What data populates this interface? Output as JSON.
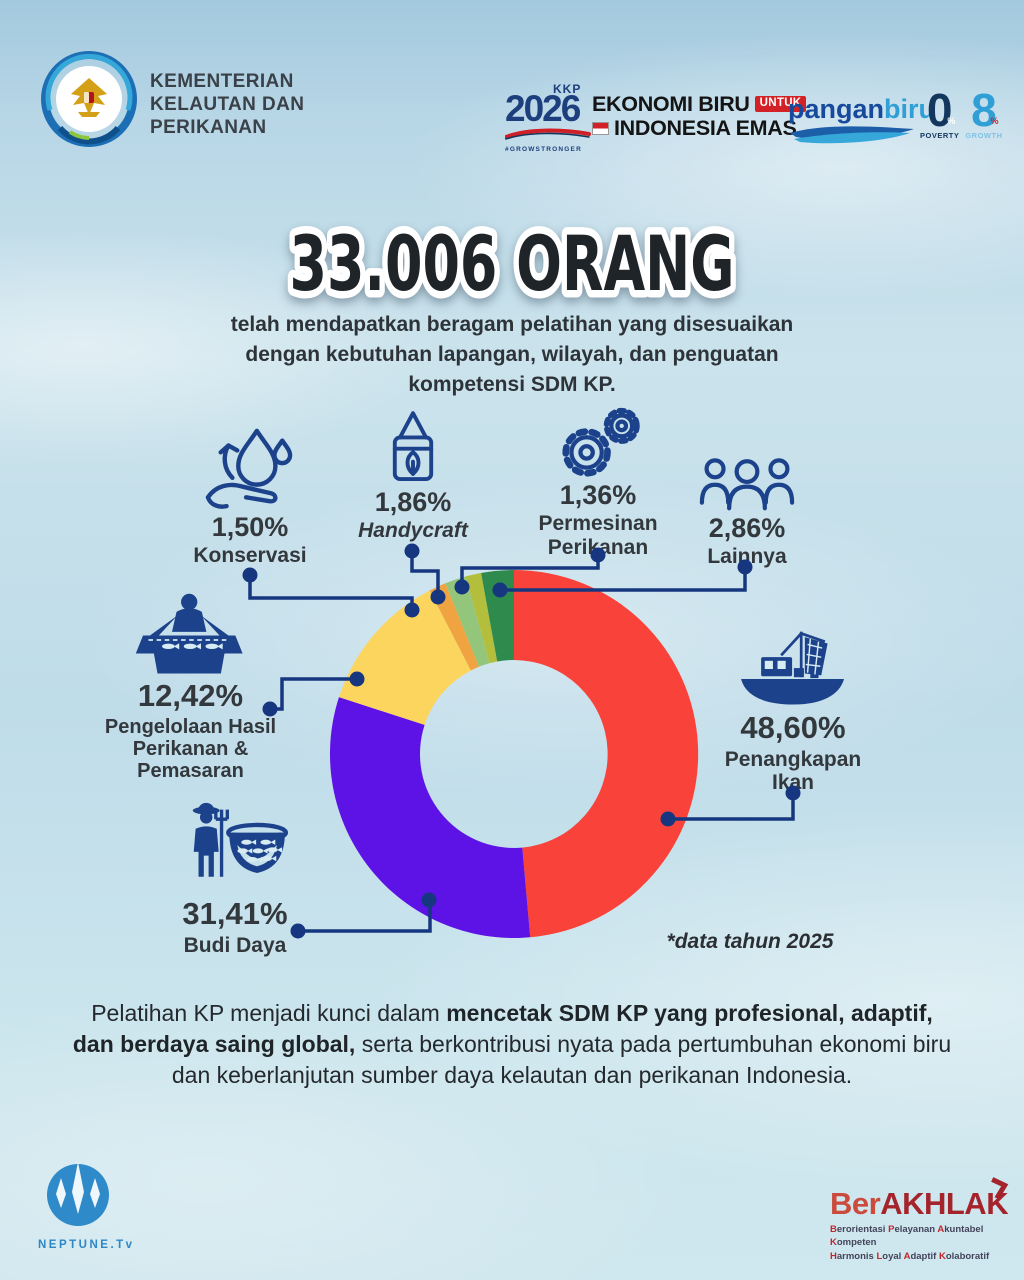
{
  "header": {
    "ministry": {
      "lines": [
        "KEMENTERIAN",
        "KELAUTAN DAN",
        "PERIKANAN"
      ]
    },
    "kkp2026": {
      "kkp": "KKP",
      "year": "2026",
      "tagline": "#GROWSTRONGER"
    },
    "ekonomi_biru": {
      "line1": "EKONOMI BIRU",
      "badge": "UNTUK",
      "line2": "INDONESIA EMAS"
    },
    "pangan_biru": {
      "word1": "pangan",
      "word2": "biru"
    },
    "poverty_growth": {
      "zero": "0",
      "eight": "8",
      "percent": "%",
      "poverty": "POVERTY",
      "growth": "GROWTH"
    }
  },
  "hero": {
    "title": "33.006 ORANG",
    "subtitle": "telah mendapatkan beragam pelatihan yang disesuaikan dengan kebutuhan lapangan, wilayah, dan penguatan kompetensi SDM KP."
  },
  "chart_data": {
    "type": "pie",
    "style": "donut",
    "unit": "percent",
    "start_at": "top",
    "direction": "clockwise",
    "footnote": "*data tahun 2025",
    "total_label": "33.006 ORANG",
    "series": [
      {
        "name": "Penangkapan Ikan",
        "value": 48.6,
        "value_label": "48,60%",
        "color": "#f9423a",
        "icon": "fishing-boat-icon"
      },
      {
        "name": "Budi Daya",
        "value": 31.41,
        "value_label": "31,41%",
        "color": "#5d13e6",
        "icon": "aquaculture-farmer-icon"
      },
      {
        "name": "Pengelolaan Hasil Perikanan & Pemasaran",
        "value": 12.42,
        "value_label": "12,42%",
        "color": "#fcd55e",
        "icon": "fish-market-table-icon"
      },
      {
        "name": "Konservasi",
        "value": 1.5,
        "value_label": "1,50%",
        "color": "#f0a441",
        "icon": "water-drop-hand-icon"
      },
      {
        "name": "Handycraft",
        "value": 1.86,
        "value_label": "1,86%",
        "color": "#93c67b",
        "icon": "tote-bag-icon"
      },
      {
        "name": "Permesinan Perikanan",
        "value": 1.36,
        "value_label": "1,36%",
        "color": "#b3bf3c",
        "icon": "gears-icon"
      },
      {
        "name": "Lainnya",
        "value": 2.86,
        "value_label": "2,86%",
        "color": "#2f8a4d",
        "icon": "people-group-icon"
      }
    ]
  },
  "closing": {
    "part1": "Pelatihan KP menjadi kunci dalam ",
    "part2": "mencetak SDM KP yang profesional, adaptif, dan berdaya saing global,",
    "part3": " serta berkontribusi nyata pada pertumbuhan ekonomi biru dan keberlanjutan sumber daya kelautan dan perikanan Indonesia."
  },
  "footer": {
    "neptune": {
      "label": "NEPTUNE.Tv"
    },
    "berakhlak": {
      "title_part1": "Ber",
      "title_part2": "AKHLAK",
      "tagline_lines": [
        "Berorientasi Pelayanan Akuntabel Kompeten",
        "Harmonis Loyal Adaptif Kolaboratif"
      ]
    }
  },
  "colors": {
    "accent_navy": "#16377f",
    "icon_navy": "#1d428c",
    "text_dark": "#2e3338",
    "red": "#f9423a",
    "purple": "#5d13e6",
    "yellow": "#fcd55e",
    "orange": "#f0a441",
    "light_green": "#93c67b",
    "olive": "#b3bf3c",
    "dark_green": "#2f8a4d"
  }
}
